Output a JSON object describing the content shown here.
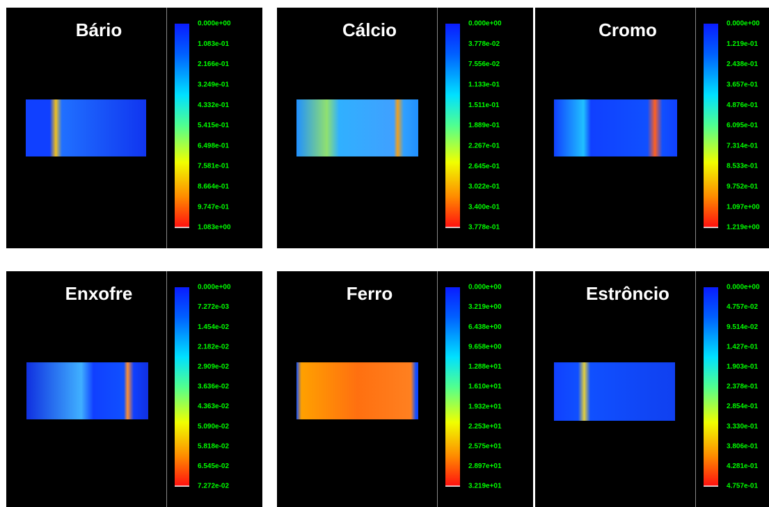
{
  "chart_data": [
    {
      "type": "heatmap",
      "title": "Bário",
      "clim": [
        0,
        1.083
      ],
      "cticks": [
        {
          "value": 0,
          "label": "0.000e+00"
        },
        {
          "value": 0.1083,
          "label": "1.083e-01"
        },
        {
          "value": 0.2166,
          "label": "2.166e-01"
        },
        {
          "value": 0.3249,
          "label": "3.249e-01"
        },
        {
          "value": 0.4332,
          "label": "4.332e-01"
        },
        {
          "value": 0.5415,
          "label": "5.415e-01"
        },
        {
          "value": 0.6498,
          "label": "6.498e-01"
        },
        {
          "value": 0.7581,
          "label": "7.581e-01"
        },
        {
          "value": 0.8664,
          "label": "8.664e-01"
        },
        {
          "value": 0.9747,
          "label": "9.747e-01"
        },
        {
          "value": 1.083,
          "label": "1.083e+00"
        }
      ]
    },
    {
      "type": "heatmap",
      "title": "Cálcio",
      "clim": [
        0,
        0.3778
      ],
      "cticks": [
        {
          "value": 0,
          "label": "0.000e+00"
        },
        {
          "value": 0.03778,
          "label": "3.778e-02"
        },
        {
          "value": 0.07556,
          "label": "7.556e-02"
        },
        {
          "value": 0.1133,
          "label": "1.133e-01"
        },
        {
          "value": 0.1511,
          "label": "1.511e-01"
        },
        {
          "value": 0.1889,
          "label": "1.889e-01"
        },
        {
          "value": 0.2267,
          "label": "2.267e-01"
        },
        {
          "value": 0.2645,
          "label": "2.645e-01"
        },
        {
          "value": 0.3022,
          "label": "3.022e-01"
        },
        {
          "value": 0.34,
          "label": "3.400e-01"
        },
        {
          "value": 0.3778,
          "label": "3.778e-01"
        }
      ]
    },
    {
      "type": "heatmap",
      "title": "Cromo",
      "clim": [
        0,
        1.219
      ],
      "cticks": [
        {
          "value": 0,
          "label": "0.000e+00"
        },
        {
          "value": 0.1219,
          "label": "1.219e-01"
        },
        {
          "value": 0.2438,
          "label": "2.438e-01"
        },
        {
          "value": 0.3657,
          "label": "3.657e-01"
        },
        {
          "value": 0.4876,
          "label": "4.876e-01"
        },
        {
          "value": 0.6095,
          "label": "6.095e-01"
        },
        {
          "value": 0.7314,
          "label": "7.314e-01"
        },
        {
          "value": 0.8533,
          "label": "8.533e-01"
        },
        {
          "value": 0.9752,
          "label": "9.752e-01"
        },
        {
          "value": 1.097,
          "label": "1.097e+00"
        },
        {
          "value": 1.219,
          "label": "1.219e+00"
        }
      ]
    },
    {
      "type": "heatmap",
      "title": "Enxofre",
      "clim": [
        0,
        0.07272
      ],
      "cticks": [
        {
          "value": 0,
          "label": "0.000e+00"
        },
        {
          "value": 0.007272,
          "label": "7.272e-03"
        },
        {
          "value": 0.01454,
          "label": "1.454e-02"
        },
        {
          "value": 0.02182,
          "label": "2.182e-02"
        },
        {
          "value": 0.02909,
          "label": "2.909e-02"
        },
        {
          "value": 0.03636,
          "label": "3.636e-02"
        },
        {
          "value": 0.04363,
          "label": "4.363e-02"
        },
        {
          "value": 0.0509,
          "label": "5.090e-02"
        },
        {
          "value": 0.05818,
          "label": "5.818e-02"
        },
        {
          "value": 0.06545,
          "label": "6.545e-02"
        },
        {
          "value": 0.07272,
          "label": "7.272e-02"
        }
      ]
    },
    {
      "type": "heatmap",
      "title": "Ferro",
      "clim": [
        0,
        32.19
      ],
      "cticks": [
        {
          "value": 0,
          "label": "0.000e+00"
        },
        {
          "value": 3.219,
          "label": "3.219e+00"
        },
        {
          "value": 6.438,
          "label": "6.438e+00"
        },
        {
          "value": 9.658,
          "label": "9.658e+00"
        },
        {
          "value": 12.88,
          "label": "1.288e+01"
        },
        {
          "value": 16.1,
          "label": "1.610e+01"
        },
        {
          "value": 19.32,
          "label": "1.932e+01"
        },
        {
          "value": 22.53,
          "label": "2.253e+01"
        },
        {
          "value": 25.75,
          "label": "2.575e+01"
        },
        {
          "value": 28.97,
          "label": "2.897e+01"
        },
        {
          "value": 32.19,
          "label": "3.219e+01"
        }
      ]
    },
    {
      "type": "heatmap",
      "title": "Estrôncio",
      "clim": [
        0,
        0.4757
      ],
      "cticks": [
        {
          "value": 0,
          "label": "0.000e+00"
        },
        {
          "value": 0.04757,
          "label": "4.757e-02"
        },
        {
          "value": 0.09514,
          "label": "9.514e-02"
        },
        {
          "value": 0.1427,
          "label": "1.427e-01"
        },
        {
          "value": 0.1903,
          "label": "1.903e-01"
        },
        {
          "value": 0.2378,
          "label": "2.378e-01"
        },
        {
          "value": 0.2854,
          "label": "2.854e-01"
        },
        {
          "value": 0.333,
          "label": "3.330e-01"
        },
        {
          "value": 0.3806,
          "label": "3.806e-01"
        },
        {
          "value": 0.4281,
          "label": "4.281e-01"
        },
        {
          "value": 0.4757,
          "label": "4.757e-01"
        }
      ]
    }
  ]
}
